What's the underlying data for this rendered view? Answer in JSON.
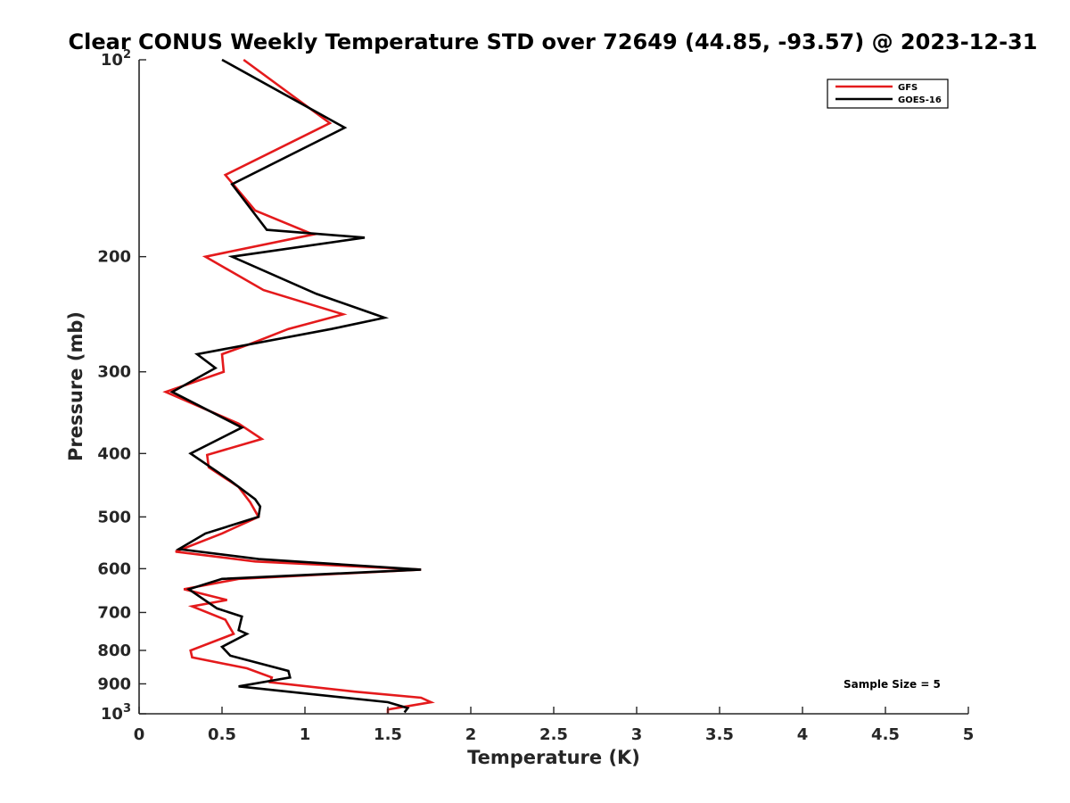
{
  "chart_data": {
    "type": "line",
    "title": "Clear CONUS Weekly Temperature STD over 72649 (44.85, -93.57) @ 2023-12-31",
    "xlabel": "Temperature (K)",
    "ylabel": "Pressure (mb)",
    "xlim": [
      0,
      5
    ],
    "ylim": [
      100,
      1000
    ],
    "y_scale": "log",
    "y_reversed": true,
    "grid": false,
    "legend_position": "top-right",
    "x_ticks": [
      0,
      0.5,
      1,
      1.5,
      2,
      2.5,
      3,
      3.5,
      4,
      4.5,
      5
    ],
    "x_tick_labels": [
      "0",
      "0.5",
      "1",
      "1.5",
      "2",
      "2.5",
      "3",
      "3.5",
      "4",
      "4.5",
      "5"
    ],
    "y_ticks": [
      {
        "value": 100,
        "base": "10",
        "exp": "2"
      },
      {
        "value": 200,
        "label": "200"
      },
      {
        "value": 300,
        "label": "300"
      },
      {
        "value": 400,
        "label": "400"
      },
      {
        "value": 500,
        "label": "500"
      },
      {
        "value": 600,
        "label": "600"
      },
      {
        "value": 700,
        "label": "700"
      },
      {
        "value": 800,
        "label": "800"
      },
      {
        "value": 900,
        "label": "900"
      },
      {
        "value": 1000,
        "base": "10",
        "exp": "3"
      }
    ],
    "annotation": "Sample Size = 5",
    "series": [
      {
        "name": "GFS",
        "color": "#e41a1c",
        "points": [
          [
            0.63,
            100
          ],
          [
            1.15,
            125
          ],
          [
            0.52,
            150
          ],
          [
            0.7,
            170
          ],
          [
            1.05,
            185
          ],
          [
            0.4,
            200
          ],
          [
            0.75,
            225
          ],
          [
            1.23,
            245
          ],
          [
            0.9,
            258
          ],
          [
            0.67,
            272
          ],
          [
            0.5,
            282
          ],
          [
            0.51,
            300
          ],
          [
            0.16,
            322
          ],
          [
            0.6,
            360
          ],
          [
            0.74,
            380
          ],
          [
            0.41,
            402
          ],
          [
            0.42,
            420
          ],
          [
            0.6,
            450
          ],
          [
            0.67,
            475
          ],
          [
            0.72,
            500
          ],
          [
            0.5,
            530
          ],
          [
            0.22,
            565
          ],
          [
            0.7,
            585
          ],
          [
            1.7,
            602
          ],
          [
            0.6,
            622
          ],
          [
            0.27,
            645
          ],
          [
            0.53,
            670
          ],
          [
            0.32,
            685
          ],
          [
            0.52,
            718
          ],
          [
            0.57,
            755
          ],
          [
            0.31,
            800
          ],
          [
            0.32,
            820
          ],
          [
            0.65,
            852
          ],
          [
            0.8,
            880
          ],
          [
            0.79,
            895
          ],
          [
            1.3,
            925
          ],
          [
            1.7,
            945
          ],
          [
            1.76,
            960
          ],
          [
            1.5,
            985
          ],
          [
            1.5,
            1000
          ]
        ]
      },
      {
        "name": "GOES-16",
        "color": "#000000",
        "points": [
          [
            0.5,
            100
          ],
          [
            1.24,
            127
          ],
          [
            0.56,
            155
          ],
          [
            0.77,
            182
          ],
          [
            1.36,
            187
          ],
          [
            0.56,
            200
          ],
          [
            1.07,
            228
          ],
          [
            1.48,
            248
          ],
          [
            1.16,
            258
          ],
          [
            0.35,
            282
          ],
          [
            0.46,
            296
          ],
          [
            0.2,
            322
          ],
          [
            0.62,
            365
          ],
          [
            0.31,
            400
          ],
          [
            0.55,
            440
          ],
          [
            0.7,
            470
          ],
          [
            0.73,
            482
          ],
          [
            0.72,
            500
          ],
          [
            0.4,
            530
          ],
          [
            0.24,
            560
          ],
          [
            0.72,
            580
          ],
          [
            1.7,
            602
          ],
          [
            0.5,
            622
          ],
          [
            0.3,
            645
          ],
          [
            0.47,
            690
          ],
          [
            0.62,
            710
          ],
          [
            0.6,
            745
          ],
          [
            0.65,
            755
          ],
          [
            0.5,
            790
          ],
          [
            0.55,
            815
          ],
          [
            0.9,
            860
          ],
          [
            0.91,
            880
          ],
          [
            0.6,
            908
          ],
          [
            1.5,
            960
          ],
          [
            1.62,
            980
          ],
          [
            1.6,
            995
          ]
        ]
      }
    ]
  }
}
